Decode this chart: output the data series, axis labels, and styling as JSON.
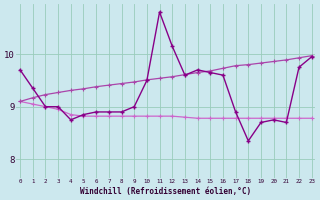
{
  "xlabel": "Windchill (Refroidissement éolien,°C)",
  "bg_color": "#cce8ee",
  "grid_color": "#99ccbb",
  "line_color_dark": "#880088",
  "line_color_mid": "#aa44aa",
  "line_color_light": "#cc66cc",
  "xmin": 0,
  "xmax": 23,
  "ymin": 7.65,
  "ymax": 10.95,
  "yticks": [
    8,
    9,
    10
  ],
  "hours": [
    0,
    1,
    2,
    3,
    4,
    5,
    6,
    7,
    8,
    9,
    10,
    11,
    12,
    13,
    14,
    15,
    16,
    17,
    18,
    19,
    20,
    21,
    22,
    23
  ],
  "line_wavy": [
    9.7,
    9.35,
    9.0,
    9.0,
    8.75,
    8.85,
    8.9,
    8.9,
    8.9,
    9.0,
    9.5,
    10.8,
    10.15,
    9.6,
    9.7,
    9.65,
    9.6,
    8.9,
    8.35,
    8.7,
    8.75,
    8.7,
    9.75,
    9.95
  ],
  "line_flat": [
    9.1,
    9.05,
    9.0,
    8.95,
    8.85,
    8.82,
    8.82,
    8.82,
    8.82,
    8.82,
    8.82,
    8.82,
    8.82,
    8.8,
    8.78,
    8.78,
    8.78,
    8.78,
    8.78,
    8.78,
    8.78,
    8.78,
    8.78,
    8.78
  ],
  "line_rising": [
    9.1,
    9.17,
    9.23,
    9.27,
    9.31,
    9.34,
    9.38,
    9.41,
    9.44,
    9.47,
    9.51,
    9.54,
    9.57,
    9.61,
    9.65,
    9.68,
    9.73,
    9.78,
    9.8,
    9.83,
    9.86,
    9.89,
    9.93,
    9.97
  ]
}
